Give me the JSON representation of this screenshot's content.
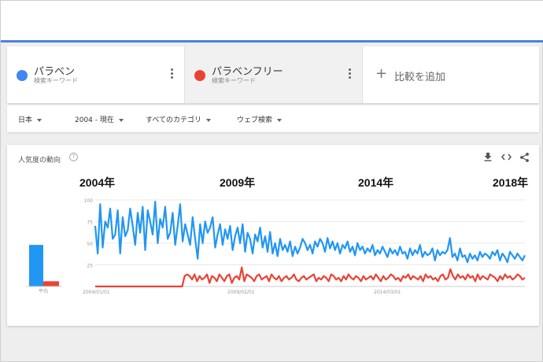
{
  "terms": [
    {
      "name": "パラベン",
      "sub": "検索キーワード",
      "color": "#4285f4"
    },
    {
      "name": "パラベンフリー",
      "sub": "検索キーワード",
      "color": "#ea4335"
    }
  ],
  "add_term_label": "比較を追加",
  "filters": {
    "region": "日本",
    "period": "2004 - 現在",
    "category": "すべてのカテゴリ",
    "search_type": "ウェブ検索"
  },
  "card": {
    "title": "人気度の動向",
    "help": "?"
  },
  "year_labels": [
    "2004年",
    "2009年",
    "2014年",
    "2018年"
  ],
  "chart_data": {
    "type": "line",
    "y_ticks": [
      "100",
      "75",
      "50",
      "25"
    ],
    "ylim": [
      0,
      100
    ],
    "x_tick_labels": [
      "2004/01/01",
      "2009/02/01",
      "2014/03/01"
    ],
    "averages": {
      "label": "平均",
      "values": [
        48,
        6
      ]
    },
    "series": [
      {
        "color": "#2196f3",
        "values": [
          70,
          38,
          95,
          45,
          75,
          68,
          90,
          55,
          60,
          88,
          38,
          80,
          58,
          65,
          90,
          70,
          48,
          85,
          62,
          92,
          42,
          88,
          75,
          60,
          98,
          50,
          78,
          68,
          92,
          55,
          62,
          85,
          48,
          70,
          95,
          52,
          72,
          60,
          48,
          80,
          55,
          32,
          72,
          50,
          75,
          62,
          68,
          80,
          45,
          60,
          72,
          48,
          66,
          55,
          70,
          42,
          58,
          68,
          50,
          72,
          40,
          62,
          55,
          38,
          60,
          52,
          68,
          45,
          58,
          40,
          63,
          38,
          50,
          35,
          55,
          42,
          48,
          40,
          52,
          35,
          46,
          38,
          45,
          55,
          50,
          42,
          48,
          38,
          52,
          46,
          55,
          50,
          40,
          56,
          44,
          52,
          42,
          50,
          38,
          48,
          44,
          52,
          40,
          46,
          36,
          50,
          42,
          46,
          38,
          44,
          40,
          48,
          36,
          42,
          38,
          46,
          40,
          34,
          44,
          38,
          42,
          36,
          46,
          38,
          40,
          32,
          44,
          36,
          42,
          38,
          48,
          34,
          40,
          36,
          38,
          44,
          30,
          42,
          36,
          40,
          38,
          42,
          56,
          34,
          38,
          30,
          44,
          34,
          36,
          28,
          38,
          32,
          36,
          30,
          40,
          34,
          38,
          36,
          32,
          40,
          36,
          42,
          30,
          38,
          34,
          28,
          40,
          36,
          32,
          38,
          34,
          30,
          36
        ]
      },
      {
        "color": "#ea4335",
        "values": [
          0,
          0,
          0,
          0,
          0,
          0,
          0,
          0,
          0,
          0,
          0,
          0,
          0,
          0,
          0,
          0,
          0,
          0,
          0,
          0,
          0,
          0,
          0,
          0,
          0,
          0,
          0,
          0,
          0,
          0,
          0,
          0,
          0,
          0,
          0,
          0,
          12,
          14,
          12,
          8,
          14,
          6,
          12,
          8,
          10,
          14,
          4,
          12,
          10,
          6,
          14,
          10,
          6,
          12,
          14,
          4,
          10,
          12,
          8,
          22,
          6,
          14,
          12,
          10,
          6,
          12,
          14,
          8,
          10,
          12,
          6,
          14,
          10,
          8,
          12,
          6,
          10,
          12,
          8,
          10,
          14,
          8,
          6,
          10,
          12,
          8,
          10,
          12,
          14,
          6,
          10,
          8,
          12,
          10,
          6,
          14,
          12,
          8,
          10,
          6,
          12,
          8,
          14,
          10,
          8,
          12,
          10,
          6,
          12,
          8,
          10,
          12,
          8,
          14,
          10,
          6,
          12,
          8,
          10,
          14,
          12,
          8,
          10,
          6,
          12,
          10,
          14,
          8,
          12,
          10,
          8,
          12,
          6,
          14,
          10,
          12,
          8,
          10,
          6,
          12,
          14,
          8,
          10,
          20,
          12,
          8,
          14,
          10,
          12,
          8,
          14,
          10,
          12,
          6,
          14,
          8,
          12,
          10,
          8,
          14,
          12,
          10,
          6,
          12,
          8,
          14,
          10,
          12,
          8,
          10,
          14,
          12,
          8,
          10
        ]
      }
    ]
  }
}
